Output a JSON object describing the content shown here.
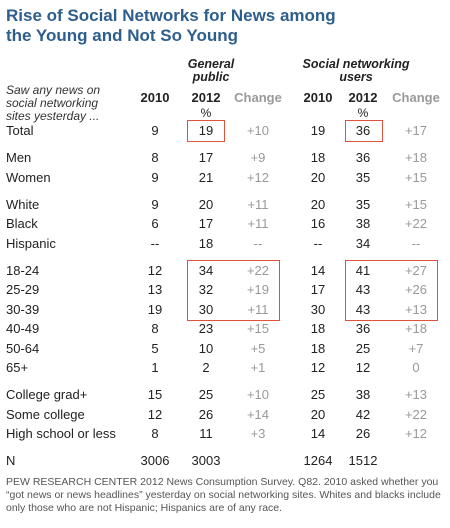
{
  "header": {
    "title": "Rise of Social Networks for News among the Young and Not So Young"
  },
  "table": {
    "row_header": "Saw any news on social networking sites yesterday ...",
    "groups": [
      "General public",
      "Social networking users"
    ],
    "columns": [
      "2010",
      "2012",
      "Change",
      "2010",
      "2012",
      "Change"
    ],
    "unit": "%",
    "sections": [
      [
        {
          "label": "Total",
          "cells": [
            "9",
            "19",
            "+10",
            "19",
            "36",
            "+17"
          ]
        }
      ],
      [
        {
          "label": "Men",
          "cells": [
            "8",
            "17",
            "+9",
            "18",
            "36",
            "+18"
          ]
        },
        {
          "label": "Women",
          "cells": [
            "9",
            "21",
            "+12",
            "20",
            "35",
            "+15"
          ]
        }
      ],
      [
        {
          "label": "White",
          "cells": [
            "9",
            "20",
            "+11",
            "20",
            "35",
            "+15"
          ]
        },
        {
          "label": "Black",
          "cells": [
            "6",
            "17",
            "+11",
            "16",
            "38",
            "+22"
          ]
        },
        {
          "label": "Hispanic",
          "cells": [
            "--",
            "18",
            "--",
            "--",
            "34",
            "--"
          ]
        }
      ],
      [
        {
          "label": "18-24",
          "cells": [
            "12",
            "34",
            "+22",
            "14",
            "41",
            "+27"
          ]
        },
        {
          "label": "25-29",
          "cells": [
            "13",
            "32",
            "+19",
            "17",
            "43",
            "+26"
          ]
        },
        {
          "label": "30-39",
          "cells": [
            "19",
            "30",
            "+11",
            "30",
            "43",
            "+13"
          ]
        },
        {
          "label": "40-49",
          "cells": [
            "8",
            "23",
            "+15",
            "18",
            "36",
            "+18"
          ]
        },
        {
          "label": "50-64",
          "cells": [
            "5",
            "10",
            "+5",
            "18",
            "25",
            "+7"
          ]
        },
        {
          "label": "65+",
          "cells": [
            "1",
            "2",
            "+1",
            "12",
            "12",
            "0"
          ]
        }
      ],
      [
        {
          "label": "College grad+",
          "cells": [
            "15",
            "25",
            "+10",
            "25",
            "38",
            "+13"
          ]
        },
        {
          "label": "Some college",
          "cells": [
            "12",
            "26",
            "+14",
            "20",
            "42",
            "+22"
          ]
        },
        {
          "label": "High school or less",
          "cells": [
            "8",
            "11",
            "+3",
            "14",
            "26",
            "+12"
          ]
        }
      ],
      [
        {
          "label": "N",
          "cells": [
            "3006",
            "3003",
            null,
            "1264",
            "1512",
            null
          ]
        }
      ]
    ]
  },
  "footer": {
    "note": "PEW RESEARCH CENTER 2012 News Consumption Survey. Q82. 2010 asked whether you “got news or news headlines” yesterday on social networking sites. Whites and blacks include only those who are not Hispanic; Hispanics are of any race."
  }
}
